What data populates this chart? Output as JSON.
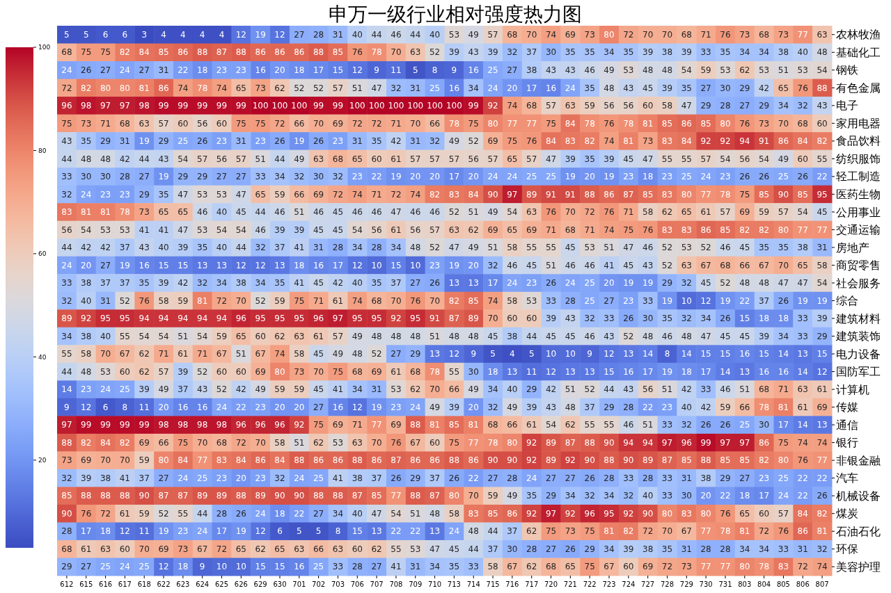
{
  "chart_data": {
    "type": "heatmap",
    "title": "申万一级行业相对强度热力图",
    "categories": [
      "612",
      "615",
      "616",
      "617",
      "618",
      "622",
      "623",
      "624",
      "625",
      "626",
      "629",
      "630",
      "701",
      "702",
      "703",
      "706",
      "707",
      "708",
      "709",
      "710",
      "713",
      "714",
      "715",
      "716",
      "717",
      "720",
      "721",
      "722",
      "723",
      "724",
      "727",
      "728",
      "729",
      "730",
      "731",
      "803",
      "804",
      "805",
      "806",
      "807"
    ],
    "y_categories": [
      "农林牧渔",
      "基础化工",
      "钢铁",
      "有色金属",
      "电子",
      "家用电器",
      "食品饮料",
      "纺织服饰",
      "轻工制造",
      "医药生物",
      "公用事业",
      "交通运输",
      "房地产",
      "商贸零售",
      "社会服务",
      "综合",
      "建筑材料",
      "建筑装饰",
      "电力设备",
      "国防军工",
      "计算机",
      "传媒",
      "通信",
      "银行",
      "非银金融",
      "汽车",
      "机械设备",
      "煤炭",
      "石油石化",
      "环保",
      "美容护理"
    ],
    "cells": [
      [
        5,
        5,
        6,
        6,
        3,
        4,
        4,
        4,
        4,
        12,
        19,
        12,
        27,
        28,
        31,
        40,
        44,
        46,
        44,
        40,
        53,
        49,
        57,
        68,
        70,
        74,
        69,
        73,
        80,
        72,
        70,
        70,
        68,
        71,
        76,
        73,
        68,
        73,
        77,
        63
      ],
      [
        68,
        75,
        75,
        82,
        84,
        85,
        86,
        88,
        87,
        88,
        86,
        86,
        86,
        88,
        85,
        76,
        78,
        70,
        63,
        52,
        39,
        43,
        39,
        32,
        37,
        30,
        35,
        35,
        34,
        35,
        39,
        38,
        39,
        33,
        35,
        34,
        34,
        38,
        40,
        48
      ],
      [
        24,
        26,
        27,
        24,
        27,
        31,
        22,
        18,
        23,
        23,
        16,
        20,
        18,
        17,
        15,
        12,
        9,
        11,
        5,
        8,
        9,
        16,
        25,
        27,
        38,
        43,
        43,
        46,
        49,
        53,
        48,
        48,
        54,
        59,
        53,
        62,
        53,
        51,
        53,
        54
      ],
      [
        72,
        82,
        80,
        80,
        81,
        86,
        74,
        78,
        74,
        65,
        73,
        62,
        52,
        52,
        57,
        51,
        47,
        32,
        31,
        25,
        16,
        34,
        24,
        20,
        17,
        16,
        24,
        35,
        48,
        43,
        45,
        39,
        35,
        27,
        30,
        29,
        42,
        65,
        76,
        88
      ],
      [
        96,
        98,
        97,
        97,
        98,
        99,
        99,
        99,
        99,
        99,
        100,
        100,
        100,
        99,
        99,
        100,
        100,
        100,
        100,
        100,
        100,
        99,
        92,
        74,
        68,
        57,
        63,
        59,
        56,
        56,
        60,
        58,
        47,
        29,
        28,
        27,
        29,
        34,
        32,
        43
      ],
      [
        75,
        73,
        71,
        68,
        63,
        57,
        60,
        56,
        60,
        75,
        75,
        72,
        66,
        70,
        69,
        72,
        72,
        71,
        70,
        66,
        78,
        75,
        80,
        77,
        77,
        75,
        84,
        78,
        76,
        78,
        81,
        85,
        86,
        85,
        80,
        76,
        73,
        70,
        68,
        60
      ],
      [
        43,
        35,
        29,
        31,
        19,
        29,
        25,
        26,
        23,
        31,
        23,
        26,
        19,
        26,
        23,
        31,
        35,
        42,
        31,
        32,
        49,
        52,
        69,
        75,
        76,
        84,
        83,
        82,
        74,
        81,
        73,
        83,
        84,
        92,
        92,
        94,
        91,
        86,
        84,
        82
      ],
      [
        44,
        48,
        48,
        42,
        44,
        43,
        54,
        57,
        56,
        57,
        51,
        44,
        49,
        63,
        68,
        65,
        60,
        61,
        57,
        57,
        57,
        56,
        57,
        65,
        57,
        47,
        39,
        35,
        39,
        45,
        47,
        55,
        55,
        57,
        54,
        56,
        54,
        49,
        60,
        55
      ],
      [
        33,
        30,
        30,
        28,
        27,
        19,
        29,
        29,
        27,
        27,
        33,
        34,
        32,
        30,
        32,
        23,
        22,
        19,
        20,
        20,
        17,
        20,
        24,
        24,
        25,
        25,
        19,
        20,
        19,
        23,
        18,
        23,
        25,
        24,
        23,
        26,
        26,
        25,
        26,
        22
      ],
      [
        32,
        24,
        23,
        23,
        29,
        35,
        47,
        53,
        53,
        47,
        65,
        59,
        66,
        69,
        72,
        74,
        71,
        72,
        74,
        82,
        83,
        84,
        90,
        97,
        89,
        91,
        91,
        88,
        86,
        87,
        85,
        83,
        80,
        77,
        78,
        75,
        85,
        90,
        85,
        95
      ],
      [
        83,
        81,
        81,
        78,
        73,
        65,
        65,
        46,
        40,
        45,
        44,
        46,
        51,
        46,
        45,
        46,
        46,
        47,
        46,
        46,
        52,
        51,
        49,
        54,
        63,
        76,
        70,
        72,
        76,
        71,
        58,
        62,
        65,
        61,
        57,
        69,
        59,
        57,
        54,
        45
      ],
      [
        56,
        54,
        53,
        53,
        41,
        41,
        47,
        53,
        54,
        54,
        46,
        39,
        39,
        45,
        45,
        54,
        56,
        61,
        56,
        57,
        63,
        62,
        69,
        65,
        69,
        71,
        68,
        71,
        74,
        75,
        76,
        83,
        83,
        86,
        85,
        82,
        82,
        80,
        77,
        77
      ],
      [
        44,
        42,
        42,
        37,
        43,
        40,
        39,
        35,
        40,
        44,
        32,
        37,
        41,
        31,
        28,
        34,
        28,
        34,
        48,
        52,
        47,
        49,
        51,
        58,
        55,
        55,
        45,
        53,
        51,
        47,
        46,
        52,
        53,
        52,
        46,
        45,
        35,
        35,
        38,
        31
      ],
      [
        24,
        20,
        27,
        19,
        16,
        15,
        15,
        13,
        13,
        12,
        12,
        13,
        18,
        16,
        17,
        12,
        10,
        15,
        10,
        23,
        19,
        20,
        32,
        46,
        45,
        51,
        46,
        46,
        41,
        45,
        43,
        52,
        63,
        67,
        68,
        66,
        67,
        70,
        65,
        58
      ],
      [
        33,
        38,
        37,
        37,
        35,
        39,
        42,
        32,
        34,
        38,
        34,
        35,
        41,
        45,
        42,
        40,
        35,
        37,
        27,
        26,
        13,
        13,
        17,
        24,
        23,
        26,
        24,
        25,
        20,
        19,
        19,
        29,
        32,
        45,
        52,
        48,
        48,
        47,
        47,
        54
      ],
      [
        32,
        40,
        31,
        52,
        76,
        58,
        59,
        81,
        72,
        70,
        52,
        59,
        75,
        71,
        61,
        74,
        68,
        70,
        76,
        70,
        82,
        85,
        74,
        58,
        53,
        33,
        28,
        25,
        27,
        23,
        33,
        19,
        10,
        12,
        19,
        22,
        37,
        26,
        19,
        19
      ],
      [
        89,
        92,
        95,
        95,
        94,
        94,
        94,
        94,
        94,
        96,
        95,
        95,
        95,
        96,
        97,
        95,
        95,
        92,
        95,
        91,
        87,
        89,
        70,
        60,
        60,
        39,
        43,
        32,
        33,
        26,
        30,
        35,
        32,
        34,
        26,
        15,
        18,
        18,
        33,
        39
      ],
      [
        34,
        38,
        40,
        55,
        54,
        54,
        51,
        54,
        59,
        65,
        60,
        62,
        63,
        61,
        57,
        49,
        48,
        48,
        48,
        51,
        48,
        48,
        45,
        38,
        44,
        45,
        45,
        46,
        43,
        52,
        48,
        46,
        48,
        47,
        45,
        45,
        39,
        34,
        33,
        29
      ],
      [
        55,
        58,
        70,
        67,
        62,
        71,
        61,
        71,
        67,
        51,
        67,
        74,
        58,
        45,
        49,
        48,
        52,
        27,
        29,
        13,
        12,
        9,
        5,
        4,
        5,
        10,
        10,
        9,
        12,
        13,
        14,
        8,
        14,
        15,
        15,
        16,
        15,
        14,
        13,
        15
      ],
      [
        44,
        48,
        53,
        60,
        62,
        57,
        39,
        52,
        60,
        60,
        69,
        80,
        73,
        70,
        75,
        68,
        69,
        61,
        68,
        78,
        55,
        30,
        18,
        13,
        11,
        12,
        13,
        13,
        15,
        16,
        17,
        19,
        18,
        17,
        14,
        13,
        16,
        16,
        14,
        12
      ],
      [
        14,
        23,
        24,
        25,
        39,
        49,
        37,
        43,
        52,
        42,
        49,
        59,
        59,
        45,
        41,
        34,
        31,
        53,
        62,
        70,
        66,
        49,
        34,
        40,
        29,
        42,
        51,
        52,
        44,
        43,
        56,
        51,
        42,
        33,
        46,
        51,
        68,
        71,
        63,
        61
      ],
      [
        9,
        12,
        6,
        8,
        11,
        20,
        16,
        16,
        24,
        22,
        23,
        20,
        20,
        27,
        16,
        12,
        19,
        23,
        24,
        49,
        39,
        20,
        32,
        49,
        39,
        43,
        48,
        37,
        29,
        28,
        22,
        23,
        40,
        42,
        59,
        66,
        78,
        81,
        61,
        69
      ],
      [
        97,
        99,
        99,
        99,
        99,
        98,
        98,
        98,
        98,
        96,
        96,
        96,
        92,
        75,
        69,
        71,
        77,
        69,
        88,
        81,
        85,
        81,
        68,
        66,
        61,
        54,
        62,
        55,
        55,
        46,
        51,
        33,
        32,
        26,
        26,
        25,
        30,
        17,
        14,
        13
      ],
      [
        88,
        82,
        84,
        82,
        69,
        66,
        75,
        70,
        68,
        72,
        70,
        58,
        51,
        62,
        53,
        63,
        70,
        76,
        67,
        60,
        75,
        77,
        78,
        80,
        92,
        89,
        87,
        88,
        90,
        94,
        94,
        97,
        96,
        99,
        97,
        97,
        86,
        75,
        74,
        74
      ],
      [
        73,
        69,
        70,
        70,
        59,
        80,
        84,
        77,
        83,
        84,
        86,
        84,
        88,
        86,
        86,
        88,
        86,
        87,
        86,
        86,
        88,
        86,
        90,
        90,
        92,
        89,
        92,
        90,
        88,
        90,
        89,
        87,
        85,
        88,
        85,
        85,
        82,
        80,
        76,
        77
      ],
      [
        32,
        39,
        38,
        41,
        37,
        27,
        24,
        25,
        23,
        20,
        23,
        32,
        24,
        25,
        41,
        38,
        37,
        26,
        29,
        37,
        26,
        22,
        27,
        28,
        24,
        27,
        27,
        26,
        28,
        33,
        28,
        33,
        31,
        38,
        29,
        27,
        23,
        25,
        22,
        22
      ],
      [
        85,
        88,
        88,
        88,
        90,
        87,
        87,
        89,
        89,
        88,
        89,
        90,
        90,
        88,
        88,
        87,
        85,
        77,
        88,
        87,
        80,
        70,
        59,
        49,
        35,
        29,
        34,
        32,
        34,
        32,
        40,
        33,
        30,
        20,
        22,
        18,
        17,
        24,
        22,
        26
      ],
      [
        90,
        76,
        72,
        61,
        59,
        52,
        55,
        44,
        28,
        26,
        24,
        18,
        22,
        27,
        34,
        40,
        47,
        54,
        51,
        48,
        58,
        83,
        85,
        86,
        92,
        97,
        92,
        96,
        95,
        92,
        90,
        80,
        83,
        80,
        76,
        65,
        60,
        57,
        84,
        82
      ],
      [
        28,
        17,
        18,
        12,
        11,
        19,
        23,
        24,
        17,
        19,
        12,
        6,
        5,
        5,
        8,
        15,
        13,
        22,
        22,
        13,
        24,
        48,
        44,
        37,
        62,
        75,
        73,
        75,
        81,
        82,
        72,
        70,
        67,
        77,
        78,
        81,
        72,
        76,
        86,
        81
      ],
      [
        68,
        61,
        63,
        60,
        70,
        69,
        73,
        67,
        72,
        65,
        62,
        65,
        63,
        66,
        63,
        60,
        62,
        55,
        53,
        47,
        45,
        44,
        37,
        30,
        28,
        27,
        26,
        29,
        34,
        39,
        38,
        35,
        31,
        28,
        28,
        34,
        34,
        33,
        31,
        32
      ],
      [
        29,
        27,
        25,
        24,
        25,
        12,
        18,
        9,
        10,
        10,
        15,
        15,
        16,
        25,
        33,
        28,
        27,
        41,
        31,
        34,
        35,
        33,
        58,
        67,
        62,
        68,
        65,
        75,
        67,
        60,
        69,
        72,
        73,
        77,
        77,
        80,
        78,
        83,
        72,
        74
      ]
    ],
    "clim": [
      3,
      100
    ],
    "cticks": [
      20,
      40,
      60,
      80,
      100
    ],
    "data_labels": true
  }
}
